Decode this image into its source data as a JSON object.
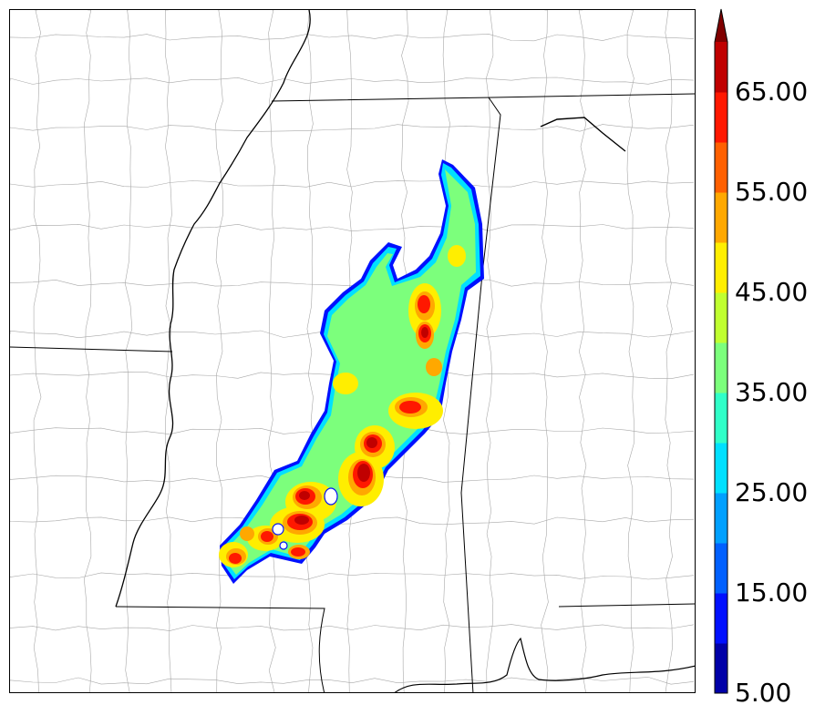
{
  "colorbar": {
    "tick_labels": [
      "5.00",
      "15.00",
      "25.00",
      "35.00",
      "45.00",
      "55.00",
      "65.00"
    ],
    "levels": [
      5,
      10,
      15,
      20,
      25,
      30,
      35,
      40,
      45,
      50,
      55,
      60,
      65,
      70
    ],
    "colors": [
      "#0000a8",
      "#0010ff",
      "#0060ff",
      "#00a0ff",
      "#00e0ff",
      "#30ffc8",
      "#7cff7c",
      "#c0ff30",
      "#ffee00",
      "#ffa800",
      "#ff6000",
      "#ff1800",
      "#c00000"
    ],
    "extend_color": "#800000",
    "extend": "max"
  },
  "map": {
    "boundary_color": "#000000",
    "county_color": "#a8a8a8",
    "field_colors": {
      "edge": "#0010ff",
      "outer": "#00e0ff",
      "mid": "#7cff7c",
      "high": "#ffee00",
      "higher": "#ffa800",
      "core": "#ff1800",
      "peak": "#c00000"
    }
  }
}
